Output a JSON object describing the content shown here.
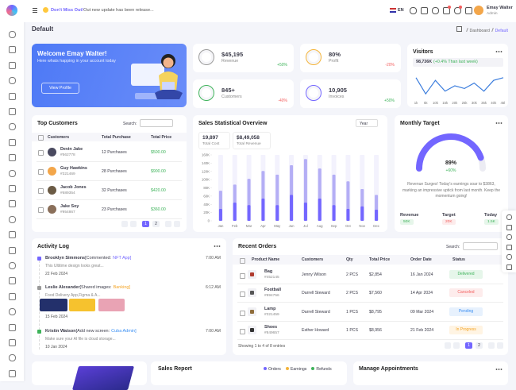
{
  "topbar": {
    "announcement_bold": "Don't Miss Out!",
    "announcement": "Out new update has been release...",
    "language": "EN",
    "user_name": "Emay Walter",
    "user_role": "Admin"
  },
  "page": {
    "title": "Default",
    "breadcrumb": [
      "Dashboard",
      "Default"
    ]
  },
  "welcome": {
    "title": "Welcome Emay Walter!",
    "text": "Here whats happing in your account today",
    "button": "View Profile"
  },
  "stats": [
    {
      "value": "$45,195",
      "label": "Revenue",
      "change": "+50%"
    },
    {
      "value": "80%",
      "label": "Profit",
      "change": "-20%"
    },
    {
      "value": "845+",
      "label": "Customers",
      "change": "-40%"
    },
    {
      "value": "10,905",
      "label": "Invoices",
      "change": "+50%"
    }
  ],
  "visitors": {
    "title": "Visitors",
    "summary": "98,736K",
    "change": "(+0.4% Than last week)",
    "chart": {
      "type": "line",
      "x": [
        "1k",
        "5k",
        "10k",
        "15k",
        "20k",
        "25k",
        "30k",
        "35k",
        "40k",
        "45k"
      ],
      "values": [
        8,
        2,
        7,
        3,
        5,
        4,
        6,
        3,
        7,
        8
      ],
      "ylim": [
        0,
        10
      ],
      "color": "#3b7ddd"
    }
  },
  "top_customers": {
    "title": "Top Customers",
    "search_label": "Search:",
    "columns": [
      "Customers",
      "Total Purchase",
      "Total Price"
    ],
    "rows": [
      {
        "name": "Devin Jake",
        "id": "#562778",
        "purchases": "12 Purchases",
        "price": "$500.00"
      },
      {
        "name": "Guy Hawkins",
        "id": "#321469",
        "purchases": "28 Purchases",
        "price": "$900.00"
      },
      {
        "name": "Jacob Jones",
        "id": "#689354",
        "purchases": "32 Purchases",
        "price": "$420.00"
      },
      {
        "name": "Jake Soy",
        "id": "#954867",
        "purchases": "23 Purchases",
        "price": "$360.00"
      }
    ],
    "pages": [
      "1",
      "2"
    ]
  },
  "sales_overview": {
    "title": "Sales Statistical Overview",
    "filter": "Year",
    "total_cost": {
      "value": "19,897",
      "label": "Total Cost"
    },
    "total_revenue": {
      "value": "$8,49,058",
      "label": "Total Revenue"
    },
    "chart": {
      "type": "bar",
      "categories": [
        "Jan",
        "Feb",
        "Mar",
        "Apr",
        "May",
        "Jun",
        "Jul",
        "Aug",
        "Sep",
        "Oct",
        "Nov",
        "Dec"
      ],
      "series": [
        {
          "color": "#b4aef5",
          "values": [
            73000,
            88000,
            102000,
            121000,
            112000,
            135000,
            150000,
            127000,
            112000,
            96000,
            77000,
            63000
          ]
        },
        {
          "color": "#7366ff",
          "values": [
            29000,
            44000,
            38000,
            54000,
            38000,
            63000,
            44000,
            54000,
            38000,
            29000,
            35000,
            27000
          ]
        }
      ],
      "ylim": [
        0,
        160000
      ],
      "yticks": [
        0,
        {
          "value": 20000,
          "label": "20K"
        },
        {
          "value": 40000,
          "label": "40K"
        },
        {
          "value": 60000,
          "label": "60K"
        },
        {
          "value": 80000,
          "label": "80K"
        },
        {
          "value": 100000,
          "label": "100K"
        },
        {
          "value": 120000,
          "label": "120K"
        },
        {
          "value": 140000,
          "label": "140K"
        },
        {
          "value": 160000,
          "label": "160K"
        }
      ]
    }
  },
  "monthly_target": {
    "title": "Monthly Target",
    "gauge": {
      "value": 89,
      "label": "89%",
      "lim": [
        0,
        100
      ],
      "color": "#7366ff"
    },
    "change": "+60%",
    "text": "Revenue Surges! Today's earnings soar to $3863, marking an impressive uptick from last month. Keep the momentum going!",
    "metrics": [
      {
        "label": "Revenue",
        "value": "50K"
      },
      {
        "label": "Target",
        "value": "20K"
      },
      {
        "label": "Today",
        "value": "1.5K"
      }
    ]
  },
  "activity_log": {
    "title": "Activity Log",
    "items": [
      {
        "name": "Brooklyn Simmons",
        "action": "[Commented:",
        "tag": "NFT App]",
        "time": "7:00 AM",
        "text": "This Ultitime design looks great...",
        "date": "22 Feb 2024"
      },
      {
        "name": "Leslie Alexander",
        "action": "[Shared images:",
        "tag": "Banking]",
        "time": "6:12 AM",
        "text": "Food Delivery App,Figma & A...",
        "date": "15 Feb 2024"
      },
      {
        "name": "Kristin Watson",
        "action": "[Add new screen:",
        "tag": "Cuba Admin]",
        "time": "7:00 AM",
        "text": "Make sure your AI file is cloud storage...",
        "date": "10 Jan 2024"
      }
    ]
  },
  "recent_orders": {
    "title": "Recent Orders",
    "search_label": "Search:",
    "columns": [
      "Product Name",
      "Customers",
      "Qty",
      "Total Price",
      "Order Date",
      "Status"
    ],
    "rows": [
      {
        "product": "Bag",
        "id": "#452145",
        "customer": "Jenny Wilson",
        "qty": "2 PCS",
        "price": "$2,854",
        "date": "16 Jan 2024",
        "status": "Delivered"
      },
      {
        "product": "Football",
        "id": "#894756",
        "customer": "Darrell Steward",
        "qty": "2 PCS",
        "price": "$7,560",
        "date": "14 Apr 2024",
        "status": "Canceled"
      },
      {
        "product": "Lamp",
        "id": "#321459",
        "customer": "Darrell Steward",
        "qty": "1 PCS",
        "price": "$8,795",
        "date": "09 Mar 2024",
        "status": "Pending"
      },
      {
        "product": "Shoes",
        "id": "#849657",
        "customer": "Esther Howard",
        "qty": "1 PCS",
        "price": "$8,956",
        "date": "21 Feb 2024",
        "status": "In Progress"
      }
    ],
    "footer": "Showing 1 to 4 of 8 entries",
    "pages": [
      "1",
      "2"
    ]
  },
  "sales_report": {
    "title": "Sales Report",
    "legend": [
      "Orders",
      "Earnings",
      "Refunds"
    ]
  },
  "appointments": {
    "title": "Manage Appointments"
  }
}
